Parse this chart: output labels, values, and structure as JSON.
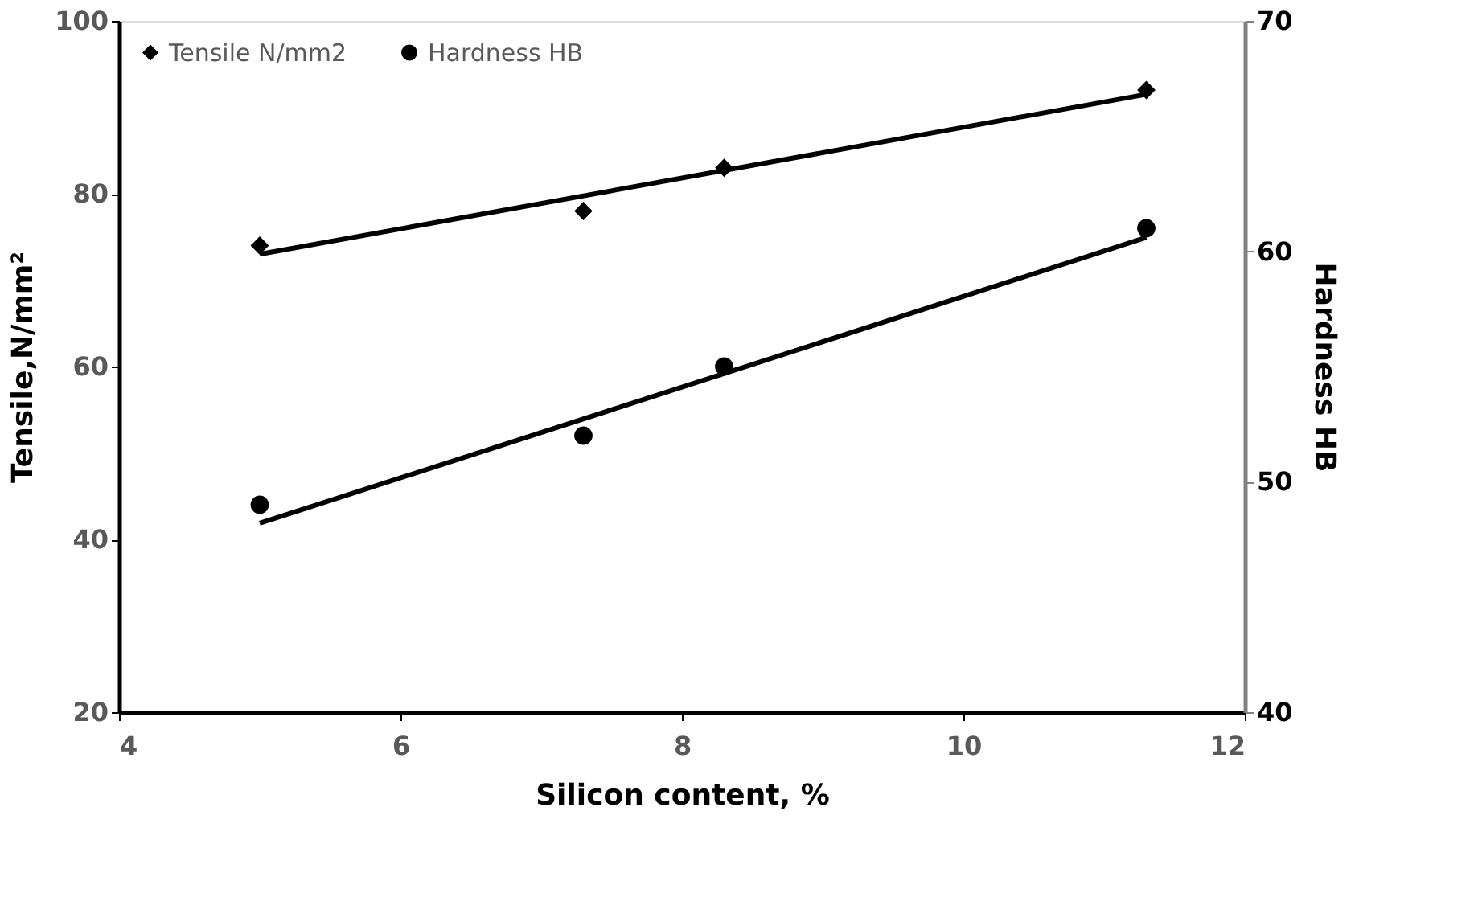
{
  "chart_data": {
    "type": "scatter",
    "xlabel": "Silicon content, %",
    "ylabel": "Tensile,N/mm²",
    "y2label": "Hardness HB",
    "xlim": [
      4,
      12
    ],
    "xticks": [
      4,
      6,
      8,
      10,
      12
    ],
    "ylim": [
      20,
      100
    ],
    "yticks": [
      20,
      40,
      60,
      80,
      100
    ],
    "y2lim": [
      40,
      70
    ],
    "y2ticks": [
      40,
      50,
      60,
      70
    ],
    "grid": false,
    "legend": "top left",
    "series": [
      {
        "name": "Tensile N/mm2",
        "marker": "diamond",
        "color": "#000000",
        "x": [
          5,
          7.3,
          8.3,
          11.3
        ],
        "values": [
          74,
          78,
          83,
          92
        ]
      },
      {
        "name": "Hardness HB",
        "marker": "circle",
        "color": "#000000",
        "axis": "y2",
        "x": [
          5,
          7.3,
          8.3,
          11.3
        ],
        "values": [
          49,
          52,
          55,
          61
        ]
      },
      {
        "type": "line",
        "marker": "none",
        "line_style": "solid",
        "color": "#000000",
        "x": [
          5,
          11.3
        ],
        "values": [
          73.0,
          91.5
        ]
      },
      {
        "type": "line",
        "marker": "none",
        "line_style": "solid",
        "color": "#000000",
        "axis": "y2",
        "x": [
          5,
          11.3
        ],
        "values": [
          48.2,
          60.6
        ]
      }
    ]
  }
}
